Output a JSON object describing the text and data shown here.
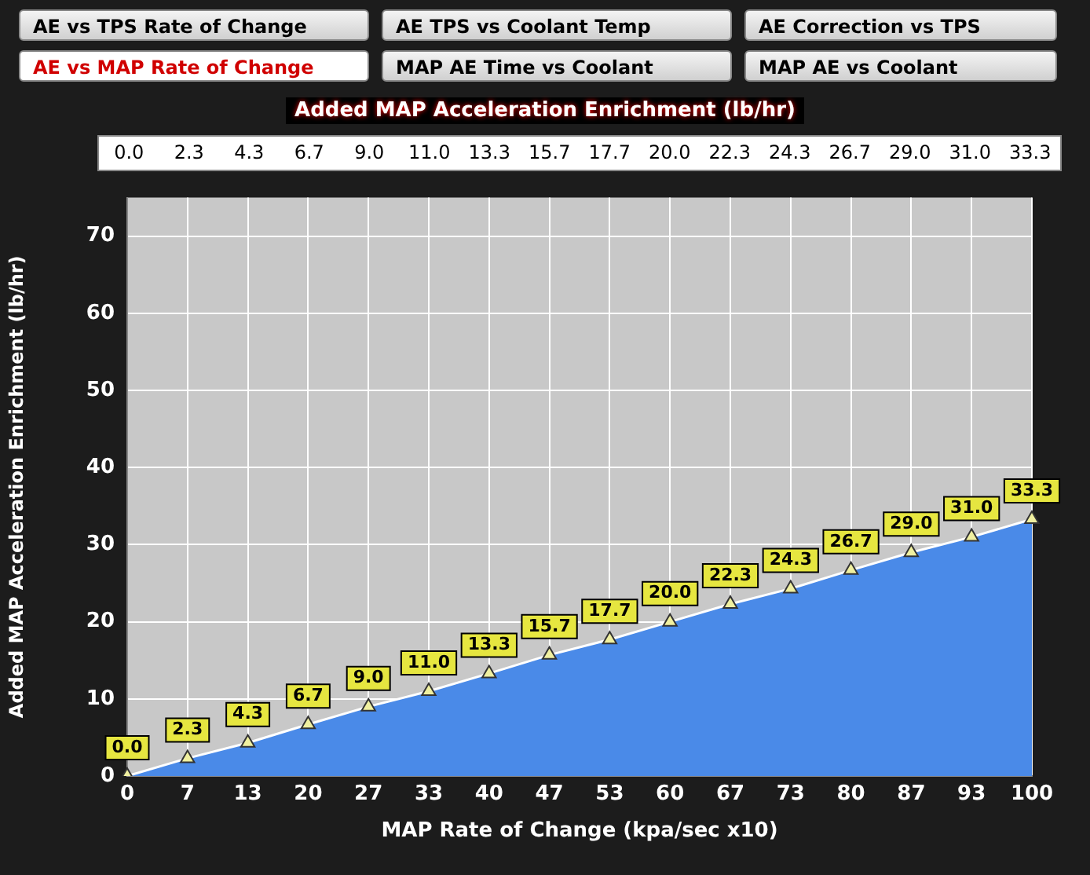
{
  "chart_data": {
    "type": "area",
    "title": "Added MAP Acceleration Enrichment (lb/hr)",
    "xlabel": "MAP Rate of Change (kpa/sec x10)",
    "ylabel": "Added MAP Acceleration Enrichment (lb/hr)",
    "annotations": [
      "AE vs TPS Rate of Change",
      "AE TPS vs Coolant Temp",
      "AE Correction vs TPS",
      "AE vs MAP Rate of Change",
      "MAP AE Time vs Coolant",
      "MAP AE vs Coolant"
    ],
    "categories": [
      "0",
      "7",
      "13",
      "20",
      "27",
      "33",
      "40",
      "47",
      "53",
      "60",
      "67",
      "73",
      "80",
      "87",
      "93",
      "100"
    ],
    "values": [
      0,
      2.3,
      4.3,
      6.7,
      9.0,
      11.0,
      13.3,
      15.7,
      17.7,
      20.0,
      22.3,
      24.3,
      26.7,
      29.0,
      31.0,
      33.3
    ],
    "value_labels": [
      "0.0",
      "2.3",
      "4.3",
      "6.7",
      "9.0",
      "11.0",
      "13.3",
      "15.7",
      "17.7",
      "20.0",
      "22.3",
      "24.3",
      "26.7",
      "29.0",
      "31.0",
      "33.3"
    ],
    "color": "#4a8ae8",
    "ylim": [
      0,
      75
    ],
    "yticks": [
      0,
      10,
      20,
      30,
      40,
      50,
      60,
      70
    ],
    "grid": true,
    "marker": "triangle",
    "legend": false
  }
}
